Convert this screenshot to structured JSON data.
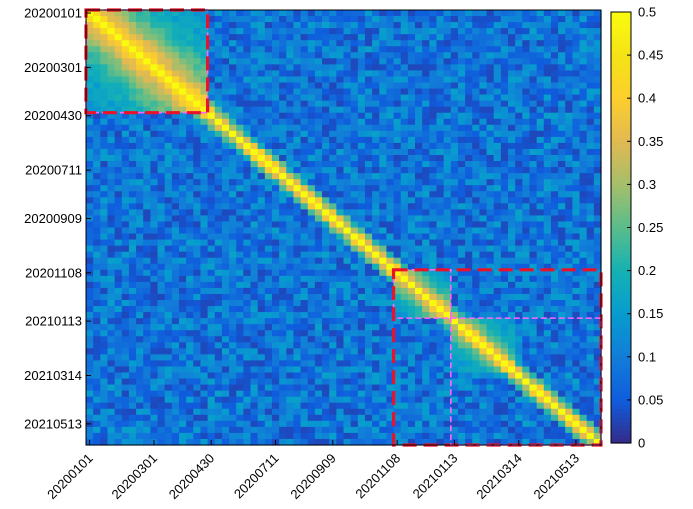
{
  "chart_data": {
    "type": "heatmap",
    "title": "",
    "xlabel": "",
    "ylabel": "",
    "x_tick_labels": [
      "20200101",
      "20200301",
      "20200430",
      "20200711",
      "20200909",
      "20201108",
      "20210113",
      "20210314",
      "20210513"
    ],
    "y_tick_labels": [
      "20200101",
      "20200301",
      "20200430",
      "20200711",
      "20200909",
      "20201108",
      "20210113",
      "20210314",
      "20210513"
    ],
    "grid_size": 72,
    "tick_index": [
      0,
      9,
      17,
      26,
      34,
      43,
      51,
      60,
      68
    ],
    "colorbar": {
      "min": 0,
      "max": 0.5,
      "colormap": "parula",
      "tick_labels": [
        "0",
        "0.05",
        "0.1",
        "0.15",
        "0.2",
        "0.25",
        "0.3",
        "0.35",
        "0.4",
        "0.45",
        "0.5"
      ]
    },
    "diagonal_value": 0.5,
    "background_range": [
      0.03,
      0.16
    ],
    "high_similarity_blocks": [
      {
        "start_date": "20200101",
        "end_date": "20200430",
        "peak_value": 0.47
      },
      {
        "start_date": "20201108",
        "end_date": "20210113",
        "peak_value": 0.45
      },
      {
        "start_date": "20210113",
        "end_date": "20210314",
        "peak_value": 0.4
      }
    ],
    "highlight_boxes": [
      {
        "from_date": "20200101",
        "to_date": "20200430",
        "color": "#ff66ff",
        "style": "dashed"
      },
      {
        "from_date": "20200101",
        "to_date": "20200430",
        "color": "#e8122a",
        "style": "dashed-thick"
      },
      {
        "from_date": "20201108",
        "to_date": "20210113",
        "color": "#ff66ff",
        "style": "dashed"
      },
      {
        "from_date": "20201108",
        "to_date": "end",
        "color": "#e8122a",
        "style": "dashed-thick"
      },
      {
        "from_date": "20210113",
        "to_date": "end",
        "color": "#ff66ff",
        "style": "dashed"
      }
    ]
  }
}
